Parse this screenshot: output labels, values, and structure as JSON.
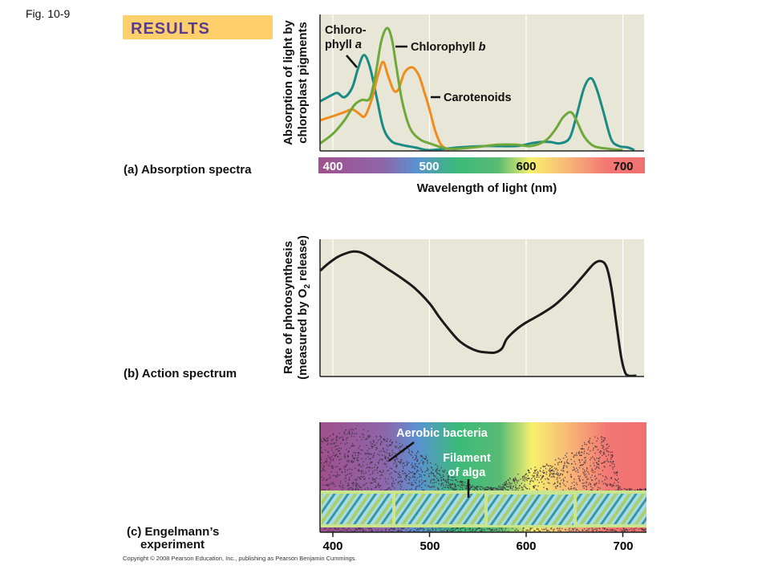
{
  "figure_label": "Fig. 10-9",
  "results_label": "RESULTS",
  "copyright": "Copyright © 2008 Pearson Education, Inc., publishing as Pearson Benjamin Cummings.",
  "colors": {
    "chlorophyll_a": "#1a8a84",
    "chlorophyll_b": "#6fa83a",
    "carotenoids": "#f08c1e",
    "plot_bg": "#e8e6d6",
    "results_box": "#fdd06b",
    "results_text": "#5b3c8c"
  },
  "panel_a": {
    "caption": "(a) Absorption spectra",
    "ylabel_line1": "Absorption of light by",
    "ylabel_line2": "chloroplast pigments",
    "xlabel": "Wavelength of light (nm)",
    "chlorophyll_a_label": [
      "Chloro-",
      "phyll ",
      "a"
    ],
    "chlorophyll_b_label": [
      "Chlorophyll ",
      "b"
    ],
    "carotenoids_label": "Carotenoids"
  },
  "panel_b": {
    "caption": "(b) Action spectrum",
    "ylabel_line1": "Rate of photosynthesis",
    "ylabel_line2": [
      "(measured by O",
      "2",
      " release)"
    ]
  },
  "panel_c": {
    "caption_line1": "(c) Engelmann’s",
    "caption_line2": "experiment",
    "bacteria_label": "Aerobic bacteria",
    "filament_label_line1": "Filament",
    "filament_label_line2": "of alga"
  },
  "chart_data": [
    {
      "type": "line",
      "title": "(a) Absorption spectra",
      "xlabel": "Wavelength of light (nm)",
      "ylabel": "Absorption of light by chloroplast pigments",
      "xlim": [
        387,
        723
      ],
      "ylim": [
        0,
        1
      ],
      "xticks": [
        "400",
        "500",
        "600",
        "700"
      ],
      "grid": true,
      "series": [
        {
          "name": "Chlorophyll a",
          "x": [
            387,
            400,
            405,
            412,
            420,
            426,
            432,
            438,
            445,
            452,
            460,
            470,
            485,
            500,
            530,
            560,
            590,
            605,
            615,
            625,
            635,
            645,
            652,
            660,
            667,
            673,
            680,
            688,
            696,
            705,
            712
          ],
          "y": [
            0.36,
            0.41,
            0.42,
            0.39,
            0.46,
            0.6,
            0.7,
            0.62,
            0.4,
            0.17,
            0.07,
            0.04,
            0.02,
            0.0,
            0.02,
            0.03,
            0.03,
            0.05,
            0.06,
            0.06,
            0.05,
            0.09,
            0.25,
            0.46,
            0.53,
            0.45,
            0.28,
            0.08,
            0.03,
            0.02,
            0.0
          ]
        },
        {
          "name": "Chlorophyll b",
          "x": [
            387,
            400,
            412,
            422,
            430,
            438,
            444,
            450,
            456,
            461,
            466,
            472,
            480,
            490,
            500,
            520,
            545,
            570,
            590,
            605,
            620,
            630,
            638,
            646,
            652,
            660,
            670,
            685,
            700
          ],
          "y": [
            0.05,
            0.12,
            0.22,
            0.33,
            0.37,
            0.38,
            0.55,
            0.8,
            0.9,
            0.82,
            0.6,
            0.35,
            0.16,
            0.08,
            0.05,
            0.01,
            0.02,
            0.04,
            0.04,
            0.03,
            0.07,
            0.15,
            0.24,
            0.28,
            0.22,
            0.1,
            0.03,
            0.01,
            0.0
          ]
        },
        {
          "name": "Carotenoids",
          "x": [
            387,
            400,
            412,
            420,
            427,
            433,
            440,
            447,
            452,
            457,
            463,
            468,
            474,
            482,
            489,
            495,
            500,
            506,
            512,
            520
          ],
          "y": [
            0.22,
            0.25,
            0.28,
            0.3,
            0.27,
            0.25,
            0.37,
            0.56,
            0.65,
            0.55,
            0.44,
            0.45,
            0.57,
            0.61,
            0.55,
            0.42,
            0.3,
            0.14,
            0.04,
            0.0
          ]
        }
      ]
    },
    {
      "type": "line",
      "title": "(b) Action spectrum",
      "ylabel": "Rate of photosynthesis (measured by O2 release)",
      "xlim": [
        387,
        723
      ],
      "ylim": [
        0,
        1
      ],
      "grid": true,
      "series": [
        {
          "x": [
            387,
            395,
            405,
            415,
            422,
            430,
            440,
            455,
            470,
            485,
            500,
            510,
            520,
            530,
            540,
            550,
            560,
            568,
            575,
            580,
            590,
            600,
            615,
            630,
            645,
            660,
            670,
            677,
            683,
            688,
            693,
            698,
            702,
            706,
            714
          ],
          "y": [
            0.77,
            0.82,
            0.87,
            0.9,
            0.91,
            0.9,
            0.86,
            0.79,
            0.72,
            0.64,
            0.53,
            0.43,
            0.34,
            0.26,
            0.21,
            0.18,
            0.17,
            0.17,
            0.2,
            0.27,
            0.34,
            0.39,
            0.45,
            0.52,
            0.62,
            0.74,
            0.82,
            0.84,
            0.8,
            0.65,
            0.4,
            0.15,
            0.03,
            0.0,
            0.0
          ]
        }
      ]
    },
    {
      "type": "scatter",
      "title": "(c) Engelmann’s experiment",
      "xlim": [
        387,
        723
      ],
      "xticks": [
        "400",
        "500",
        "600",
        "700"
      ]
    }
  ]
}
